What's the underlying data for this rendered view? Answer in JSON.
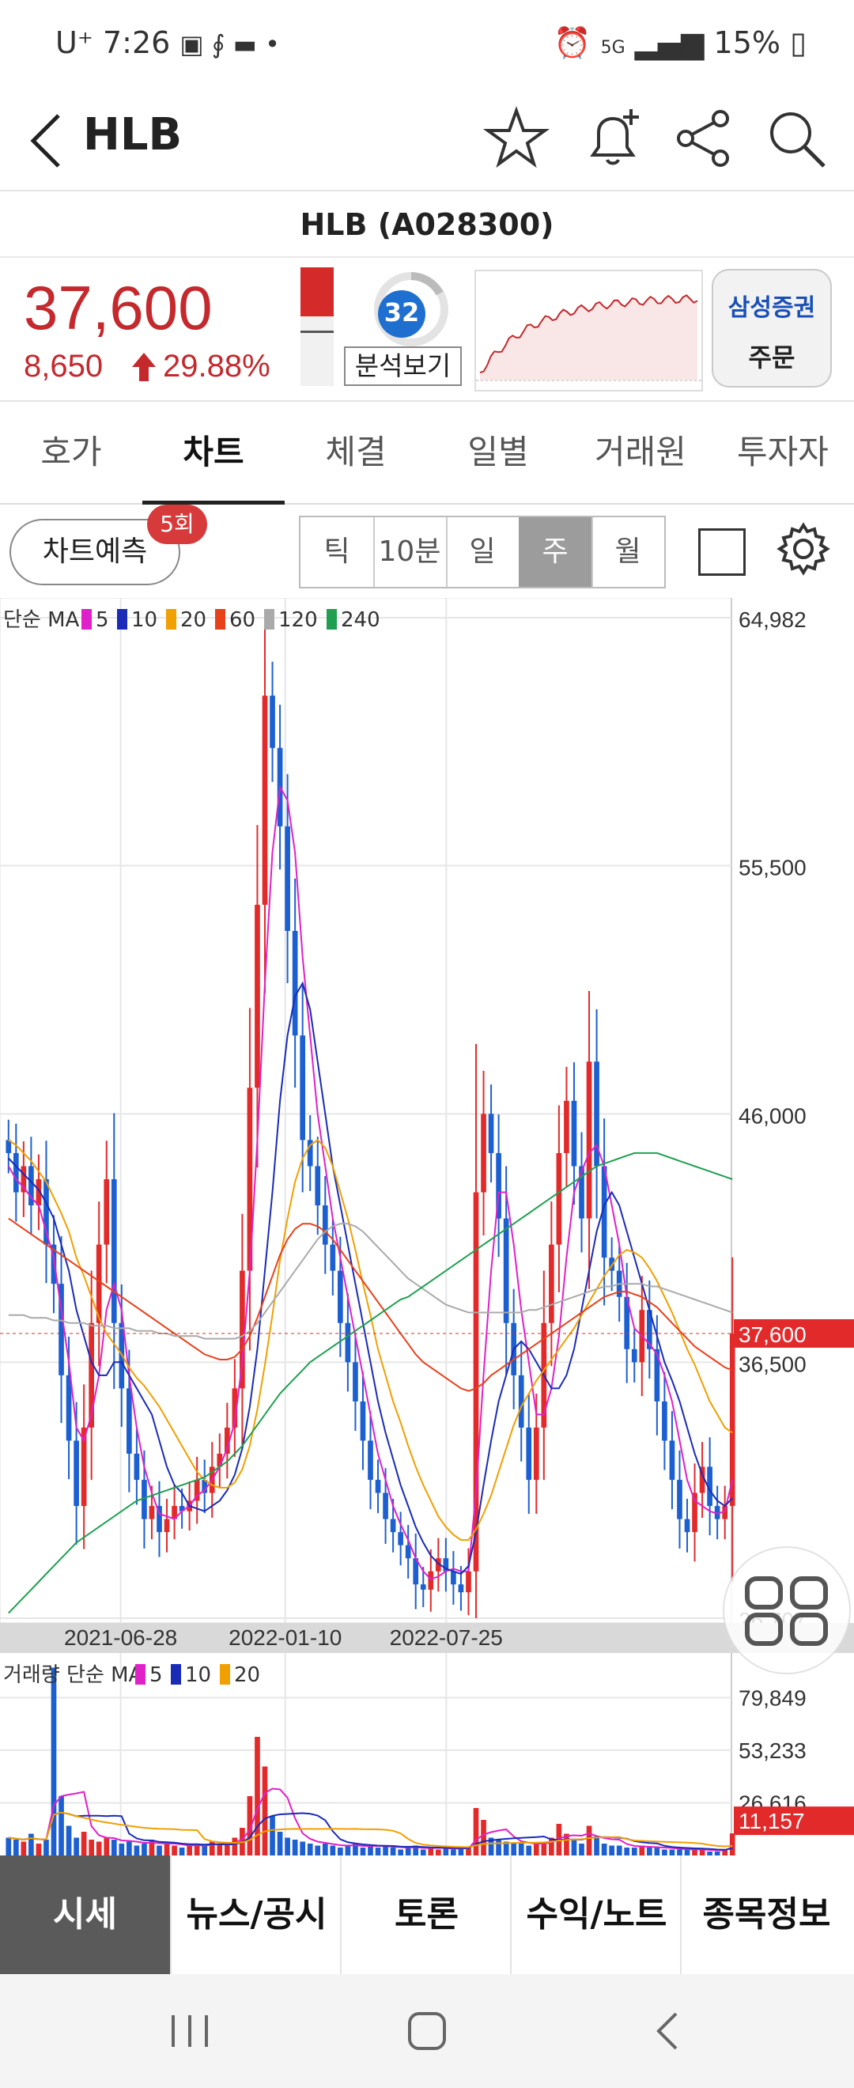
{
  "status_bar": {
    "carrier": "U⁺",
    "time": "7:26",
    "network": "5G",
    "battery": "15%"
  },
  "header": {
    "back_icon": "chevron-left-icon",
    "title": "HLB",
    "icons": [
      "star-icon",
      "bell-plus-icon",
      "share-icon",
      "search-icon"
    ]
  },
  "stock": {
    "name_code": "HLB (A028300)",
    "price": "37,600",
    "change": "8,650",
    "change_pct": "29.88%",
    "up_color": "#c4292d",
    "score": "32",
    "analysis_label": "분석보기",
    "broker": "삼성증권",
    "order_label": "주문"
  },
  "tabs": [
    "호가",
    "차트",
    "체결",
    "일별",
    "거래원",
    "투자자"
  ],
  "active_tab": "차트",
  "controls": {
    "predict_label": "차트예측",
    "predict_badge": "5회",
    "periods": [
      "틱",
      "10분",
      "일",
      "주",
      "월"
    ],
    "selected_period": "주"
  },
  "chart_data": {
    "type": "candlestick",
    "legend_main": {
      "prefix": "단순 MA",
      "ma": [
        {
          "label": "5",
          "color": "#e020c8"
        },
        {
          "label": "10",
          "color": "#1a2bb8"
        },
        {
          "label": "20",
          "color": "#f0a000"
        },
        {
          "label": "60",
          "color": "#e8401a"
        },
        {
          "label": "120",
          "color": "#aaaaaa"
        },
        {
          "label": "240",
          "color": "#1fa050"
        }
      ]
    },
    "price_axis": [
      "64,982",
      "55,500",
      "46,000",
      "36,500",
      "26,707"
    ],
    "current_price": "37,600",
    "x_labels": [
      "2021-06-28",
      "2022-01-10",
      "2022-07-25"
    ],
    "ylim": [
      26707,
      64982
    ],
    "close_series": [
      44500,
      43000,
      44000,
      42500,
      43500,
      41000,
      39500,
      36000,
      33500,
      31000,
      34000,
      38000,
      41000,
      43500,
      38000,
      35500,
      33000,
      32000,
      30500,
      31000,
      30000,
      30500,
      31000,
      30800,
      31200,
      32000,
      31500,
      32500,
      33000,
      34000,
      35500,
      40000,
      47000,
      54000,
      62000,
      60000,
      57000,
      53000,
      49000,
      45000,
      44000,
      42500,
      41000,
      40000,
      38000,
      36500,
      35000,
      33500,
      32000,
      31500,
      30500,
      30000,
      29500,
      29000,
      28000,
      27800,
      28500,
      29000,
      28500,
      28000,
      27700,
      28500,
      43000,
      46000,
      44500,
      42000,
      38000,
      36000,
      34000,
      32000,
      34000,
      38000,
      41000,
      44500,
      46500,
      44000,
      42000,
      48000,
      44000,
      40500,
      40000,
      39000,
      37000,
      36500,
      38500,
      37000,
      35000,
      33500,
      32000,
      30500,
      30000,
      31500,
      32500,
      31000,
      30500,
      31000,
      37600
    ],
    "ma": {
      "ma5": [
        44000,
        43500,
        43200,
        42800,
        42500,
        41500,
        40500,
        38500,
        36500,
        34000,
        33500,
        34500,
        36000,
        38500,
        39500,
        38500,
        36000,
        34000,
        32500,
        31500,
        30700,
        30600,
        30500,
        30800,
        31000,
        31400,
        31600,
        32000,
        32500,
        33200,
        34200,
        36500,
        40000,
        45000,
        51000,
        56000,
        58500,
        58000,
        56000,
        52000,
        49000,
        46000,
        44000,
        42000,
        40500,
        39000,
        37500,
        36000,
        34500,
        33000,
        32000,
        31000,
        30300,
        29700,
        29000,
        28500,
        28200,
        28300,
        28500,
        28600,
        28500,
        28500,
        31500,
        36000,
        40000,
        43000,
        43000,
        41000,
        38500,
        36500,
        34500,
        34500,
        35500,
        37500,
        40500,
        43000,
        43800,
        44500,
        44800,
        44000,
        42500,
        41000,
        39000,
        37800,
        37500,
        37200,
        36800,
        36000,
        35000,
        33500,
        32000,
        31200,
        31000,
        30800,
        30700,
        30800,
        32000
      ],
      "ma10": [
        44300,
        44000,
        43700,
        43400,
        43100,
        42600,
        42000,
        41000,
        40000,
        38500,
        37500,
        36500,
        36000,
        36000,
        36500,
        36500,
        36000,
        35500,
        35000,
        34500,
        33500,
        32500,
        31800,
        31500,
        31000,
        30900,
        30800,
        31000,
        31200,
        31600,
        32200,
        33200,
        34800,
        37000,
        40000,
        43000,
        46500,
        49000,
        50500,
        51000,
        50000,
        48000,
        46000,
        44000,
        42500,
        41000,
        39500,
        38000,
        36500,
        35000,
        33800,
        32800,
        31800,
        31000,
        30200,
        29600,
        29100,
        28800,
        28600,
        28500,
        28400,
        28700,
        30000,
        31800,
        33500,
        35000,
        36000,
        37000,
        37300,
        37000,
        36500,
        36000,
        35500,
        35500,
        36000,
        37000,
        38500,
        40000,
        41500,
        42500,
        43000,
        42500,
        41500,
        40500,
        39500,
        38500,
        37500,
        36500,
        35800,
        35000,
        34000,
        33000,
        32200,
        31600,
        31200,
        31000,
        31300
      ],
      "ma20": [
        45000,
        44800,
        44500,
        44200,
        43800,
        43400,
        42800,
        42200,
        41500,
        40500,
        39800,
        39000,
        38200,
        37600,
        37200,
        36800,
        36300,
        35900,
        35600,
        35200,
        34800,
        34300,
        33800,
        33300,
        32800,
        32300,
        32000,
        31800,
        31700,
        31700,
        31900,
        32400,
        33300,
        34700,
        36400,
        38300,
        40400,
        42000,
        43400,
        44300,
        44800,
        45000,
        44700,
        44000,
        43000,
        42000,
        40800,
        39500,
        38300,
        37000,
        36000,
        35000,
        34200,
        33300,
        32500,
        31800,
        31200,
        30600,
        30200,
        29900,
        29700,
        29700,
        30100,
        30700,
        31400,
        32300,
        33200,
        34100,
        34800,
        35300,
        35800,
        36200,
        36600,
        37000,
        37400,
        37800,
        38300,
        38800,
        39300,
        39800,
        40200,
        40600,
        40800,
        40700,
        40500,
        40100,
        39600,
        39000,
        38400,
        37700,
        37000,
        36400,
        35700,
        35000,
        34500,
        34000,
        33800
      ],
      "ma60": [
        42000,
        41800,
        41600,
        41400,
        41200,
        41000,
        40800,
        40600,
        40400,
        40200,
        40000,
        39800,
        39600,
        39400,
        39200,
        39000,
        38800,
        38600,
        38400,
        38200,
        38000,
        37800,
        37600,
        37400,
        37200,
        37000,
        36800,
        36700,
        36600,
        36600,
        36700,
        37000,
        37500,
        38200,
        39000,
        39800,
        40600,
        41200,
        41600,
        41800,
        41800,
        41700,
        41500,
        41200,
        40800,
        40400,
        40000,
        39600,
        39200,
        38800,
        38400,
        38000,
        37600,
        37200,
        36800,
        36500,
        36300,
        36100,
        35900,
        35700,
        35500,
        35400,
        35500,
        35700,
        36000,
        36200,
        36400,
        36600,
        36800,
        37000,
        37200,
        37400,
        37600,
        37800,
        38000,
        38200,
        38400,
        38600,
        38800,
        39000,
        39100,
        39200,
        39200,
        39100,
        39000,
        38800,
        38600,
        38300,
        38000,
        37700,
        37400,
        37100,
        36900,
        36700,
        36500,
        36300,
        36200
      ],
      "ma120": [
        38300,
        38300,
        38300,
        38200,
        38200,
        38200,
        38100,
        38100,
        38000,
        38000,
        38000,
        37900,
        37900,
        37900,
        37800,
        37800,
        37800,
        37700,
        37700,
        37700,
        37600,
        37600,
        37500,
        37500,
        37500,
        37500,
        37400,
        37400,
        37400,
        37400,
        37400,
        37500,
        37700,
        38000,
        38400,
        38800,
        39200,
        39600,
        40000,
        40400,
        40800,
        41200,
        41500,
        41700,
        41800,
        41800,
        41700,
        41500,
        41200,
        40900,
        40600,
        40300,
        40000,
        39700,
        39500,
        39300,
        39100,
        38900,
        38700,
        38600,
        38500,
        38400,
        38400,
        38400,
        38400,
        38400,
        38400,
        38400,
        38400,
        38500,
        38500,
        38600,
        38700,
        38800,
        38900,
        39000,
        39100,
        39200,
        39300,
        39400,
        39400,
        39500,
        39500,
        39500,
        39500,
        39400,
        39400,
        39300,
        39200,
        39100,
        39000,
        38900,
        38800,
        38700,
        38600,
        38500,
        38400
      ],
      "ma240": [
        26900,
        27200,
        27500,
        27800,
        28100,
        28400,
        28700,
        29000,
        29300,
        29600,
        29800,
        30000,
        30200,
        30400,
        30600,
        30800,
        31000,
        31200,
        31300,
        31400,
        31500,
        31600,
        31700,
        31800,
        31900,
        32000,
        32100,
        32300,
        32500,
        32700,
        33000,
        33300,
        33700,
        34100,
        34500,
        34900,
        35300,
        35600,
        35900,
        36200,
        36500,
        36700,
        36900,
        37100,
        37300,
        37500,
        37700,
        37900,
        38100,
        38300,
        38500,
        38700,
        38900,
        39000,
        39200,
        39400,
        39600,
        39800,
        40000,
        40200,
        40400,
        40600,
        40800,
        41000,
        41200,
        41400,
        41600,
        41800,
        42000,
        42200,
        42400,
        42600,
        42800,
        43000,
        43200,
        43400,
        43600,
        43800,
        44000,
        44100,
        44200,
        44300,
        44400,
        44500,
        44500,
        44500,
        44500,
        44400,
        44300,
        44200,
        44100,
        44000,
        43900,
        43800,
        43700,
        43600,
        43500
      ]
    },
    "volume": {
      "legend": {
        "prefix": "거래량 단순 MA",
        "ma": [
          {
            "label": "5",
            "color": "#e020c8"
          },
          {
            "label": "10",
            "color": "#1a2bb8"
          },
          {
            "label": "20",
            "color": "#f0a000"
          }
        ]
      },
      "axis": [
        "79,849",
        "53,233",
        "26,616"
      ],
      "current": "11,157",
      "ylim": [
        0,
        100000
      ],
      "values": [
        9000,
        8000,
        7000,
        11000,
        6000,
        8000,
        95000,
        30000,
        15000,
        9000,
        12000,
        8000,
        7000,
        9000,
        8000,
        6000,
        7000,
        5000,
        6000,
        8000,
        5000,
        6000,
        5000,
        4000,
        5000,
        6000,
        5000,
        7000,
        6000,
        5000,
        9000,
        14000,
        30000,
        60000,
        45000,
        20000,
        12000,
        9000,
        8000,
        7000,
        6000,
        5000,
        6000,
        5000,
        4000,
        5000,
        6000,
        4000,
        5000,
        4000,
        5000,
        4000,
        3000,
        4000,
        5000,
        3000,
        4000,
        3000,
        4000,
        3000,
        4000,
        4000,
        24000,
        18000,
        9000,
        8000,
        7000,
        6000,
        6000,
        5000,
        6000,
        7000,
        9000,
        16000,
        11000,
        8000,
        6000,
        15000,
        9000,
        6000,
        5000,
        5000,
        4000,
        4000,
        5000,
        4000,
        4000,
        3000,
        3000,
        3000,
        3000,
        3000,
        3000,
        2000,
        2000,
        3000,
        11157
      ]
    }
  },
  "bottom_menu": [
    "시세",
    "뉴스/공시",
    "토론",
    "수익/노트",
    "종목정보"
  ],
  "active_menu": "시세"
}
